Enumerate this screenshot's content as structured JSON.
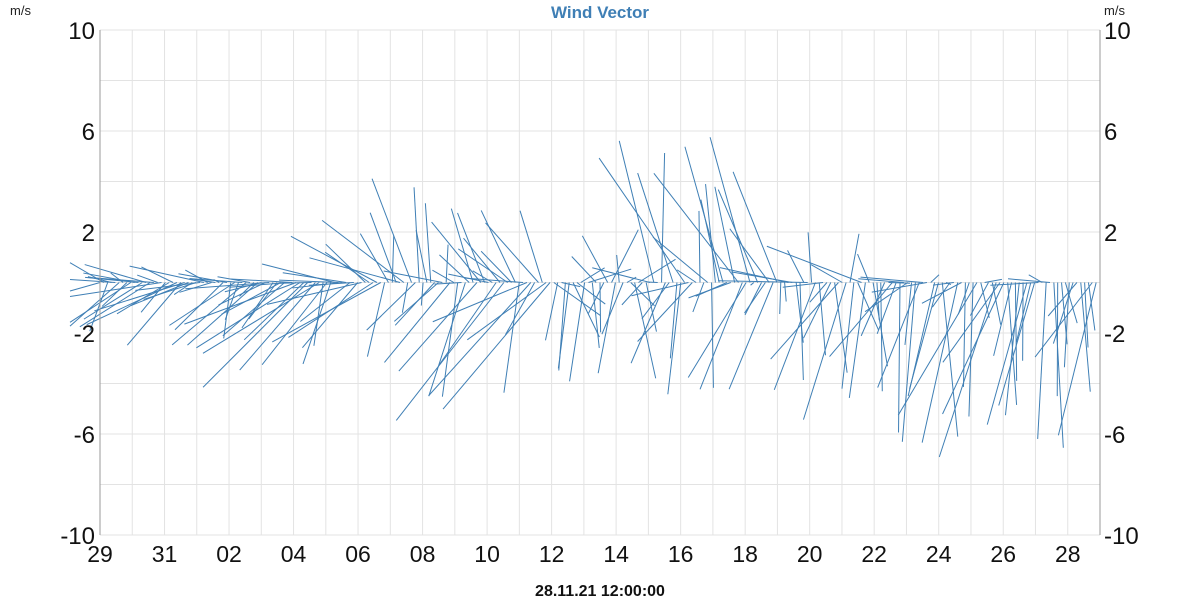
{
  "chart_data": {
    "type": "wind-vector",
    "title": "Wind Vector",
    "ylabel_left": "m/s",
    "ylabel_right": "m/s",
    "ylim": [
      -10,
      10
    ],
    "y_tick_labels": [
      "10",
      "6",
      "2",
      "-2",
      "-6",
      "-10"
    ],
    "x_tick_labels": [
      "29",
      "31",
      "02",
      "04",
      "06",
      "08",
      "10",
      "12",
      "14",
      "16",
      "18",
      "20",
      "22",
      "24",
      "26",
      "28"
    ],
    "x_range_days": [
      "2021-10-29",
      "2021-11-29"
    ],
    "x_caption": "28.11.21 12:00:00",
    "grid": true,
    "color": "#3f7fb5",
    "vector_count": 260
  }
}
